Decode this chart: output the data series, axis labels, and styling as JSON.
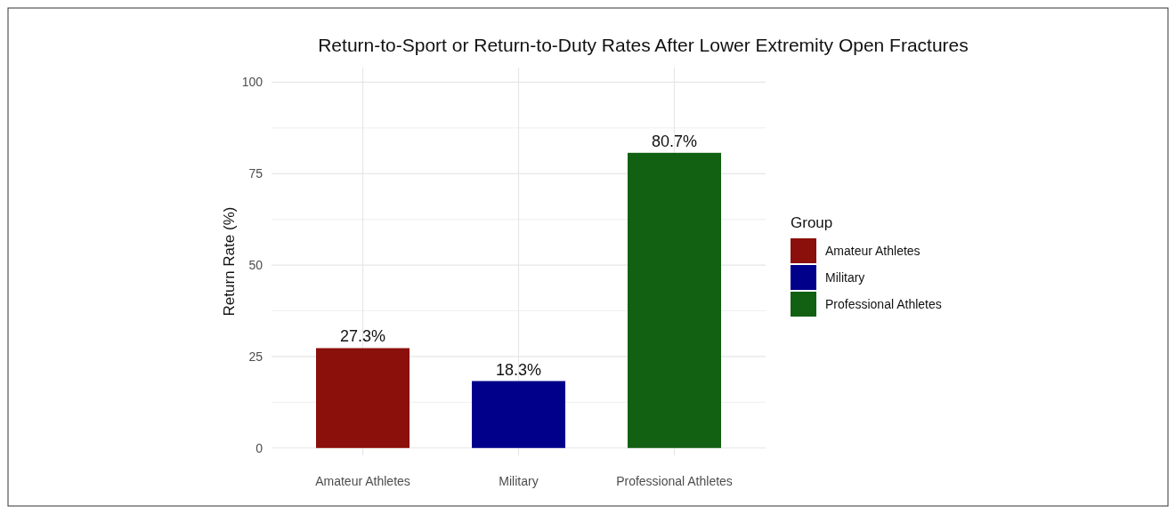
{
  "chart_data": {
    "type": "bar",
    "title": "Return-to-Sport or Return-to-Duty Rates After Lower Extremity Open Fractures",
    "ylabel": "Return Rate (%)",
    "legend_title": "Group",
    "categories": [
      "Amateur Athletes",
      "Military",
      "Professional Athletes"
    ],
    "series": [
      {
        "name": "Amateur Athletes",
        "color": "#8b0f0a",
        "values": [
          27.3,
          null,
          null
        ],
        "value_labels": [
          "27.3%",
          null,
          null
        ]
      },
      {
        "name": "Military",
        "color": "#00008b",
        "values": [
          null,
          18.3,
          null
        ],
        "value_labels": [
          null,
          "18.3%",
          null
        ]
      },
      {
        "name": "Professional Athletes",
        "color": "#126012",
        "values": [
          null,
          null,
          80.7
        ],
        "value_labels": [
          null,
          null,
          "80.7%"
        ]
      }
    ],
    "ylim": [
      -2,
      104
    ],
    "yticks": [
      0,
      {
        "value": 12.5,
        "label": null
      },
      25,
      {
        "value": 37.5,
        "label": null
      },
      50,
      {
        "value": 62.5,
        "label": null
      },
      75,
      {
        "value": 87.5,
        "label": null
      },
      100
    ],
    "grid": true,
    "legend": "right"
  }
}
